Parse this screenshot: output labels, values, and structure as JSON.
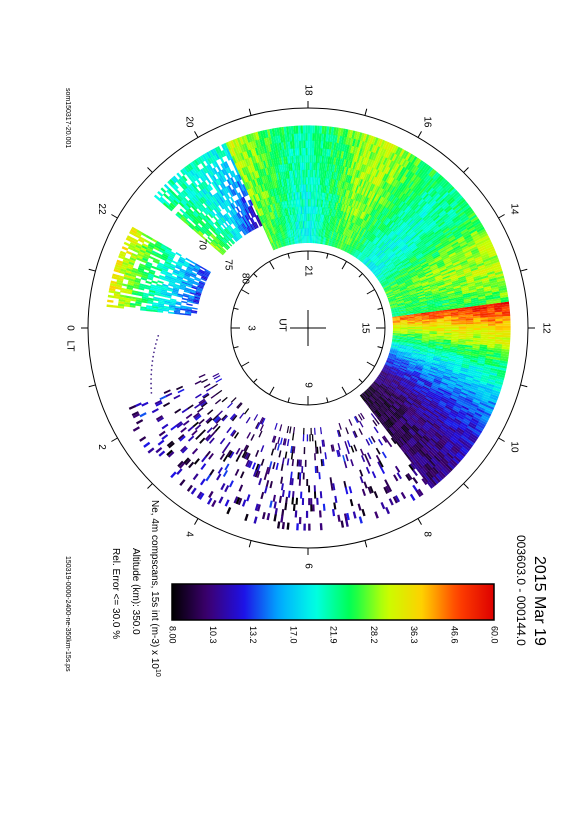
{
  "chart_data": {
    "type": "polar",
    "date": "2015 Mar 19",
    "time_range": "003603.0 - 000144.0",
    "file_id": "som150317-20.001",
    "ps_file": "150319-0000-2400-ne-350km-15s.ps",
    "quantity_label": "Ne, 4m compscans, 15s int (m-3) x 10",
    "quantity_exponent": "10",
    "altitude_label": "Altitude (km): 350.0",
    "error_label": "Rel. Error <= 30.0 %",
    "lt_label": "LT",
    "ut_label": "UT",
    "lt_hours": [
      "0",
      "2",
      "4",
      "6",
      "8",
      "10",
      "12",
      "14",
      "16",
      "18",
      "20",
      "22"
    ],
    "ut_hours": [
      "21",
      "3",
      "9",
      "15"
    ],
    "latitude_labels": [
      "70",
      "75",
      "80"
    ],
    "colorbar_ticks": [
      "8.00",
      "10.3",
      "13.2",
      "17.0",
      "21.9",
      "28.2",
      "36.3",
      "46.6",
      "60.0"
    ],
    "colorbar_range": [
      8.0,
      60.0
    ],
    "colormap_stops": [
      "#000000",
      "#3d0070",
      "#1e10e6",
      "#00aaff",
      "#00ffe6",
      "#00ff50",
      "#c8ff00",
      "#ffd000",
      "#ff4000",
      "#dd0000"
    ],
    "coverage_sectors": [
      {
        "lt_start": 8.5,
        "lt_end": 12.5,
        "level": "low-to-high"
      },
      {
        "lt_start": 12.5,
        "lt_end": 19.6,
        "level": "high"
      },
      {
        "lt_start": 19.6,
        "lt_end": 21.3,
        "level": "mixed"
      },
      {
        "lt_start": 22.0,
        "lt_end": 23.6,
        "level": "mixed"
      },
      {
        "lt_start": 1.6,
        "lt_end": 8.5,
        "level": "low-sparse"
      }
    ]
  }
}
